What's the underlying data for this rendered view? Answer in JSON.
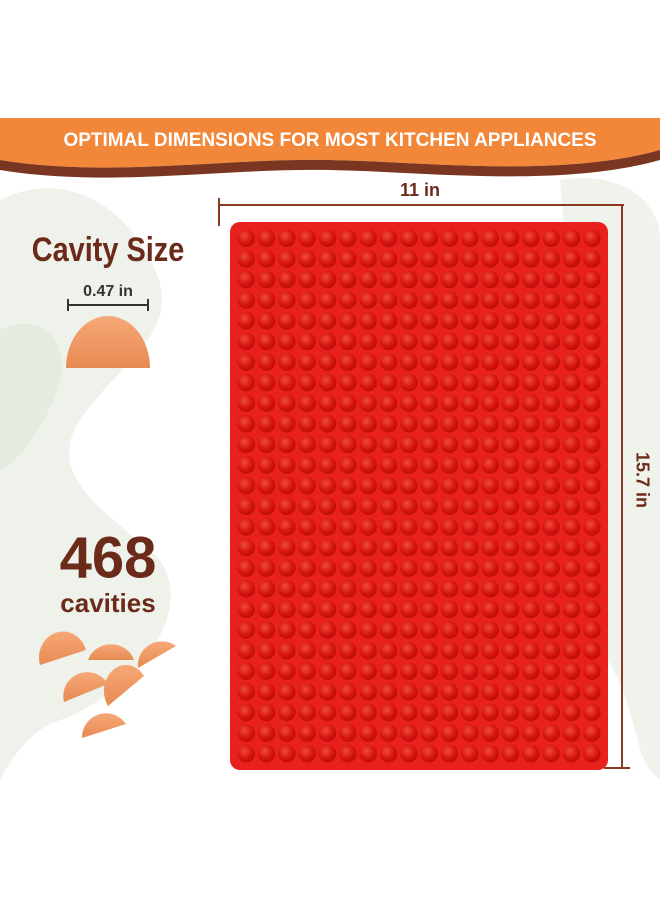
{
  "banner": {
    "title": "OPTIMAL DIMENSIONS FOR MOST KITCHEN APPLIANCES"
  },
  "dimensions": {
    "width": "11 in",
    "height": "15.7 in"
  },
  "cavity": {
    "heading": "Cavity Size",
    "size": "0.47 in"
  },
  "count": {
    "number": "468",
    "label": "cavities"
  }
}
